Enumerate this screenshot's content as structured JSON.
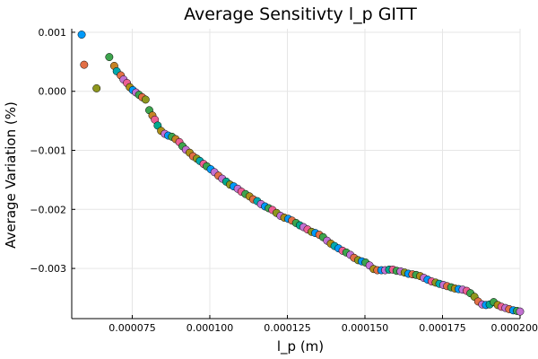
{
  "chart_data": {
    "type": "scatter",
    "title": "Average Sensitivty l_p GITT",
    "xlabel": "l_p (m)",
    "ylabel": "Average Variation (%)",
    "xlim": [
      5.55e-05,
      0.0002
    ],
    "ylim": [
      -0.00385,
      0.00106
    ],
    "grid": true,
    "legend": "none",
    "x_ticks": [
      {
        "value": 7.5e-05,
        "label": "0.000075"
      },
      {
        "value": 0.0001,
        "label": "0.000100"
      },
      {
        "value": 0.000125,
        "label": "0.000125"
      },
      {
        "value": 0.00015,
        "label": "0.000150"
      },
      {
        "value": 0.000175,
        "label": "0.000175"
      },
      {
        "value": 0.0002,
        "label": "0.000200"
      }
    ],
    "y_ticks": [
      {
        "value": 0.001,
        "label": "0.001"
      },
      {
        "value": 0.0,
        "label": "0.000"
      },
      {
        "value": -0.001,
        "label": "−0.001"
      },
      {
        "value": -0.002,
        "label": "−0.002"
      },
      {
        "value": -0.003,
        "label": "−0.003"
      }
    ],
    "colors": [
      "#009af9",
      "#e26f46",
      "#3da44d",
      "#c271d2",
      "#ac8e18",
      "#00a9ad",
      "#ed5e93",
      "#c68225",
      "#00a98d",
      "#8e971d"
    ],
    "points": [
      [
        5.87e-05,
        0.00096,
        "#009af9"
      ],
      [
        5.95e-05,
        0.00045,
        "#e26f46"
      ],
      [
        6.35e-05,
        5e-05,
        "#8e971d"
      ],
      [
        6.76e-05,
        0.00058,
        "#3da44d"
      ],
      [
        6.92e-05,
        0.00043,
        "#c68225"
      ],
      [
        7e-05,
        0.00034,
        "#00a9ad"
      ],
      [
        7.13e-05,
        0.00027,
        "#e26f46"
      ],
      [
        7.22e-05,
        0.0002,
        "#c271d2"
      ],
      [
        7.33e-05,
        0.00014,
        "#ed5e93"
      ],
      [
        7.42e-05,
        7e-05,
        "#ac8e18"
      ],
      [
        7.52e-05,
        2e-05,
        "#009af9"
      ],
      [
        7.62e-05,
        -2e-05,
        "#c271d2"
      ],
      [
        7.72e-05,
        -6e-05,
        "#3da44d"
      ],
      [
        7.82e-05,
        -0.0001,
        "#e26f46"
      ],
      [
        7.93e-05,
        -0.00014,
        "#8e971d"
      ],
      [
        8.05e-05,
        -0.00032,
        "#3da44d"
      ],
      [
        8.15e-05,
        -0.00041,
        "#c68225"
      ],
      [
        8.23e-05,
        -0.00048,
        "#ed5e93"
      ],
      [
        8.32e-05,
        -0.00058,
        "#00a98d"
      ],
      [
        8.43e-05,
        -0.00067,
        "#ac8e18"
      ],
      [
        8.55e-05,
        -0.00072,
        "#c271d2"
      ],
      [
        8.66e-05,
        -0.00075,
        "#009af9"
      ],
      [
        8.78e-05,
        -0.00077,
        "#3da44d"
      ],
      [
        8.9e-05,
        -0.00081,
        "#c68225"
      ],
      [
        9.02e-05,
        -0.00086,
        "#ed5e93"
      ],
      [
        9.12e-05,
        -0.00093,
        "#3da44d"
      ],
      [
        9.23e-05,
        -0.00099,
        "#c271d2"
      ],
      [
        9.35e-05,
        -0.00104,
        "#ac8e18"
      ],
      [
        9.46e-05,
        -0.0011,
        "#e26f46"
      ],
      [
        9.58e-05,
        -0.00114,
        "#8e971d"
      ],
      [
        9.68e-05,
        -0.00118,
        "#00a9ad"
      ],
      [
        9.8e-05,
        -0.00123,
        "#ed5e93"
      ],
      [
        9.9e-05,
        -0.00127,
        "#3da44d"
      ],
      [
        0.0001003,
        -0.00132,
        "#009af9"
      ],
      [
        0.0001015,
        -0.00137,
        "#c271d2"
      ],
      [
        0.0001028,
        -0.00143,
        "#e26f46"
      ],
      [
        0.000104,
        -0.00148,
        "#c271d2"
      ],
      [
        0.0001053,
        -0.00153,
        "#00a98d"
      ],
      [
        0.0001065,
        -0.00158,
        "#8e971d"
      ],
      [
        0.0001077,
        -0.00161,
        "#009af9"
      ],
      [
        0.000109,
        -0.00165,
        "#c271d2"
      ],
      [
        0.0001102,
        -0.0017,
        "#ed5e93"
      ],
      [
        0.0001115,
        -0.00174,
        "#3da44d"
      ],
      [
        0.0001128,
        -0.00178,
        "#ac8e18"
      ],
      [
        0.000114,
        -0.00183,
        "#e26f46"
      ],
      [
        0.0001153,
        -0.00186,
        "#00a9ad"
      ],
      [
        0.0001165,
        -0.00191,
        "#c271d2"
      ],
      [
        0.0001178,
        -0.00195,
        "#009af9"
      ],
      [
        0.000119,
        -0.00198,
        "#3da44d"
      ],
      [
        0.0001202,
        -0.00201,
        "#ed5e93"
      ],
      [
        0.0001215,
        -0.00206,
        "#8e971d"
      ],
      [
        0.0001228,
        -0.00211,
        "#c271d2"
      ],
      [
        0.000124,
        -0.00214,
        "#ac8e18"
      ],
      [
        0.0001253,
        -0.00216,
        "#009af9"
      ],
      [
        0.0001265,
        -0.00219,
        "#e26f46"
      ],
      [
        0.0001278,
        -0.00223,
        "#3da44d"
      ],
      [
        0.000129,
        -0.00227,
        "#00a98d"
      ],
      [
        0.0001302,
        -0.0023,
        "#c271d2"
      ],
      [
        0.0001315,
        -0.00234,
        "#ed5e93"
      ],
      [
        0.0001328,
        -0.00238,
        "#8e971d"
      ],
      [
        0.000134,
        -0.0024,
        "#009af9"
      ],
      [
        0.0001353,
        -0.00243,
        "#e26f46"
      ],
      [
        0.0001365,
        -0.00247,
        "#3da44d"
      ],
      [
        0.0001378,
        -0.00253,
        "#c271d2"
      ],
      [
        0.000139,
        -0.00258,
        "#ac8e18"
      ],
      [
        0.0001402,
        -0.00262,
        "#00a9ad"
      ],
      [
        0.0001415,
        -0.00266,
        "#009af9"
      ],
      [
        0.0001428,
        -0.0027,
        "#ed5e93"
      ],
      [
        0.000144,
        -0.00273,
        "#3da44d"
      ],
      [
        0.0001453,
        -0.00277,
        "#c271d2"
      ],
      [
        0.0001465,
        -0.00282,
        "#e26f46"
      ],
      [
        0.0001478,
        -0.00286,
        "#8e971d"
      ],
      [
        0.000149,
        -0.00288,
        "#009af9"
      ],
      [
        0.0001502,
        -0.0029,
        "#3da44d"
      ],
      [
        0.0001515,
        -0.00295,
        "#c271d2"
      ],
      [
        0.0001528,
        -0.00301,
        "#ac8e18"
      ],
      [
        0.000154,
        -0.00303,
        "#e26f46"
      ],
      [
        0.0001553,
        -0.00303,
        "#009af9"
      ],
      [
        0.0001565,
        -0.00303,
        "#c271d2"
      ],
      [
        0.0001578,
        -0.00302,
        "#00a98d"
      ],
      [
        0.000159,
        -0.00302,
        "#ed5e93"
      ],
      [
        0.0001602,
        -0.00304,
        "#3da44d"
      ],
      [
        0.0001615,
        -0.00305,
        "#c271d2"
      ],
      [
        0.0001628,
        -0.00307,
        "#8e971d"
      ],
      [
        0.000164,
        -0.00309,
        "#009af9"
      ],
      [
        0.0001653,
        -0.0031,
        "#e26f46"
      ],
      [
        0.0001665,
        -0.00311,
        "#3da44d"
      ],
      [
        0.0001678,
        -0.00313,
        "#ac8e18"
      ],
      [
        0.000169,
        -0.00316,
        "#c271d2"
      ],
      [
        0.0001702,
        -0.00319,
        "#009af9"
      ],
      [
        0.0001715,
        -0.00322,
        "#ed5e93"
      ],
      [
        0.0001728,
        -0.00324,
        "#8e971d"
      ],
      [
        0.000174,
        -0.00326,
        "#00a9ad"
      ],
      [
        0.0001753,
        -0.00328,
        "#c271d2"
      ],
      [
        0.0001765,
        -0.0033,
        "#e26f46"
      ],
      [
        0.0001778,
        -0.00332,
        "#3da44d"
      ],
      [
        0.000179,
        -0.00334,
        "#ac8e18"
      ],
      [
        0.0001802,
        -0.00335,
        "#009af9"
      ],
      [
        0.0001815,
        -0.00336,
        "#c271d2"
      ],
      [
        0.0001828,
        -0.00338,
        "#ed5e93"
      ],
      [
        0.000184,
        -0.00342,
        "#3da44d"
      ],
      [
        0.0001853,
        -0.00348,
        "#8e971d"
      ],
      [
        0.0001865,
        -0.00356,
        "#e26f46"
      ],
      [
        0.0001878,
        -0.00361,
        "#c271d2"
      ],
      [
        0.000189,
        -0.00362,
        "#009af9"
      ],
      [
        0.0001902,
        -0.00361,
        "#00a98d"
      ],
      [
        0.0001915,
        -0.00357,
        "#3da44d"
      ],
      [
        0.0001928,
        -0.00362,
        "#ac8e18"
      ],
      [
        0.000194,
        -0.00365,
        "#ed5e93"
      ],
      [
        0.0001953,
        -0.00367,
        "#c271d2"
      ],
      [
        0.0001965,
        -0.00369,
        "#e26f46"
      ],
      [
        0.0001978,
        -0.00371,
        "#009af9"
      ],
      [
        0.000199,
        -0.00372,
        "#3da44d"
      ],
      [
        0.0002,
        -0.00373,
        "#c271d2"
      ]
    ]
  }
}
